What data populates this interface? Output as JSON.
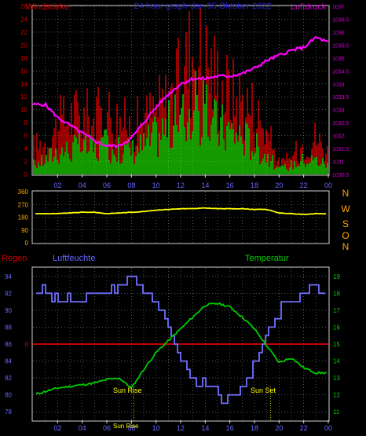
{
  "header": {
    "left_title": "Windstärke",
    "center_title": "24 hour graph dan 05 Oktober 2022",
    "right_title": "Luftdruck"
  },
  "middle": {
    "compass_labels": [
      "N",
      "W",
      "S",
      "O",
      "N"
    ]
  },
  "bottom": {
    "regen_label": "Regen",
    "humidity_label": "Luftfeuchte",
    "temperature_label": "Temperatur",
    "sunrise_label": "Sun Rise",
    "sunset_label": "Sun Set",
    "sun_bottom_label": "Sun Rise"
  },
  "colors": {
    "wind_gust": "#ff0000",
    "wind_avg": "#00ff00",
    "pressure": "#ff00ff",
    "direction": "#ffff00",
    "humidity": "#6f6fff",
    "temperature": "#00cc00",
    "rain": "#ff0000",
    "axis_text_left_top": "#cc0000",
    "axis_text_right_top": "#cc00cc",
    "axis_text_blue": "#6666ff",
    "axis_text_green": "#00cc00",
    "sun_text": "#ffff00"
  },
  "chart_data": [
    {
      "type": "bar",
      "name": "Windstärke / Luftdruck",
      "x_ticks": [
        "02",
        "04",
        "06",
        "08",
        "10",
        "12",
        "14",
        "16",
        "18",
        "20",
        "22",
        "00"
      ],
      "y_left_ticks": [
        0,
        2,
        4,
        6,
        8,
        10,
        12,
        14,
        16,
        18,
        20,
        22,
        24,
        26
      ],
      "y_left_range": [
        0,
        26
      ],
      "y_right_ticks": [
        1030.5,
        1031,
        1031.5,
        1032,
        1032.5,
        1033,
        1033.5,
        1034,
        1034.5,
        1035,
        1035.5,
        1036,
        1036.5,
        1037
      ],
      "y_right_range": [
        1030.5,
        1037
      ],
      "series": [
        {
          "name": "gust",
          "x": [
            0,
            1,
            2,
            3,
            4,
            5,
            6,
            7,
            8,
            9,
            10,
            11,
            12,
            13,
            14,
            15,
            16,
            17,
            18,
            19,
            20,
            21,
            22,
            23,
            24
          ],
          "values": [
            5,
            6,
            9,
            11,
            11,
            10,
            12,
            10,
            9,
            10,
            12,
            14,
            17,
            24,
            21,
            18,
            15,
            14,
            12,
            8,
            2,
            3,
            6,
            7,
            4
          ]
        },
        {
          "name": "average",
          "x": [
            0,
            1,
            2,
            3,
            4,
            5,
            6,
            7,
            8,
            9,
            10,
            11,
            12,
            13,
            14,
            15,
            16,
            17,
            18,
            19,
            20,
            21,
            22,
            23,
            24
          ],
          "values": [
            2,
            3,
            5,
            5,
            6,
            5,
            6,
            5,
            5,
            6,
            8,
            10,
            11,
            14,
            12,
            10,
            9,
            8,
            6,
            4,
            1,
            2,
            3,
            3,
            2
          ]
        },
        {
          "name": "pressure",
          "x": [
            0,
            1,
            2,
            3,
            4,
            5,
            6,
            7,
            8,
            9,
            10,
            11,
            12,
            13,
            14,
            15,
            16,
            17,
            18,
            19,
            20,
            21,
            22,
            23,
            24
          ],
          "values": [
            1033.2,
            1033.2,
            1032.7,
            1032.4,
            1032.1,
            1031.8,
            1031.6,
            1031.6,
            1031.9,
            1032.5,
            1033.1,
            1033.6,
            1034.0,
            1034.2,
            1034.2,
            1034.3,
            1034.3,
            1034.4,
            1034.6,
            1034.9,
            1035.1,
            1035.3,
            1035.4,
            1035.8,
            1035.6
          ]
        }
      ]
    },
    {
      "type": "line",
      "name": "Windrichtung",
      "x_ticks": [
        "02",
        "04",
        "06",
        "08",
        "10",
        "12",
        "14",
        "16",
        "18",
        "20",
        "22",
        "00"
      ],
      "y_ticks": [
        0,
        90,
        180,
        270,
        360
      ],
      "y_range": [
        0,
        360
      ],
      "series": [
        {
          "name": "direction",
          "x": [
            0,
            1,
            2,
            3,
            4,
            5,
            6,
            7,
            8,
            9,
            10,
            11,
            12,
            13,
            14,
            15,
            16,
            17,
            18,
            19,
            20,
            21,
            22,
            23,
            24
          ],
          "values": [
            205,
            205,
            205,
            210,
            215,
            215,
            205,
            210,
            215,
            220,
            230,
            235,
            240,
            240,
            245,
            240,
            240,
            240,
            235,
            235,
            210,
            205,
            200,
            205,
            205
          ]
        }
      ]
    },
    {
      "type": "line",
      "name": "Regen / Luftfeuchte / Temperatur",
      "x_ticks": [
        "02",
        "04",
        "06",
        "08",
        "10",
        "12",
        "14",
        "16",
        "18",
        "20",
        "22",
        "00"
      ],
      "y_left_ticks": [
        78,
        80,
        82,
        84,
        86,
        88,
        90,
        92,
        94
      ],
      "y_left_range": [
        77,
        95
      ],
      "y_right_ticks": [
        11,
        12,
        13,
        14,
        15,
        16,
        17,
        18,
        19
      ],
      "y_right_range": [
        10.5,
        19.5
      ],
      "series": [
        {
          "name": "humidity",
          "x": [
            0,
            1,
            2,
            3,
            4,
            5,
            6,
            7,
            8,
            9,
            10,
            11,
            12,
            13,
            14,
            15,
            16,
            17,
            18,
            19,
            20,
            21,
            22,
            23,
            24
          ],
          "values": [
            92,
            92,
            91,
            91,
            91,
            92,
            92,
            93,
            94,
            93,
            91,
            88,
            84,
            82,
            81,
            80,
            79,
            81,
            84,
            87,
            90,
            91,
            92,
            93,
            92
          ]
        },
        {
          "name": "temperature",
          "x": [
            0,
            1,
            2,
            3,
            4,
            5,
            6,
            7,
            8,
            9,
            10,
            11,
            12,
            13,
            14,
            15,
            16,
            17,
            18,
            19,
            20,
            21,
            22,
            23,
            24
          ],
          "values": [
            12.0,
            12.2,
            12.4,
            12.5,
            12.6,
            12.7,
            12.9,
            13.0,
            12.4,
            13.5,
            14.5,
            15.2,
            15.9,
            16.6,
            17.3,
            17.4,
            17.2,
            16.6,
            15.9,
            14.9,
            13.9,
            14.2,
            13.6,
            13.3,
            13.3
          ]
        },
        {
          "name": "rain",
          "x": [
            0,
            24
          ],
          "values": [
            86,
            86
          ]
        }
      ],
      "annotations": [
        {
          "label": "Sun Rise",
          "x": 8.2
        },
        {
          "label": "Sun Set",
          "x": 19.3
        }
      ]
    }
  ]
}
